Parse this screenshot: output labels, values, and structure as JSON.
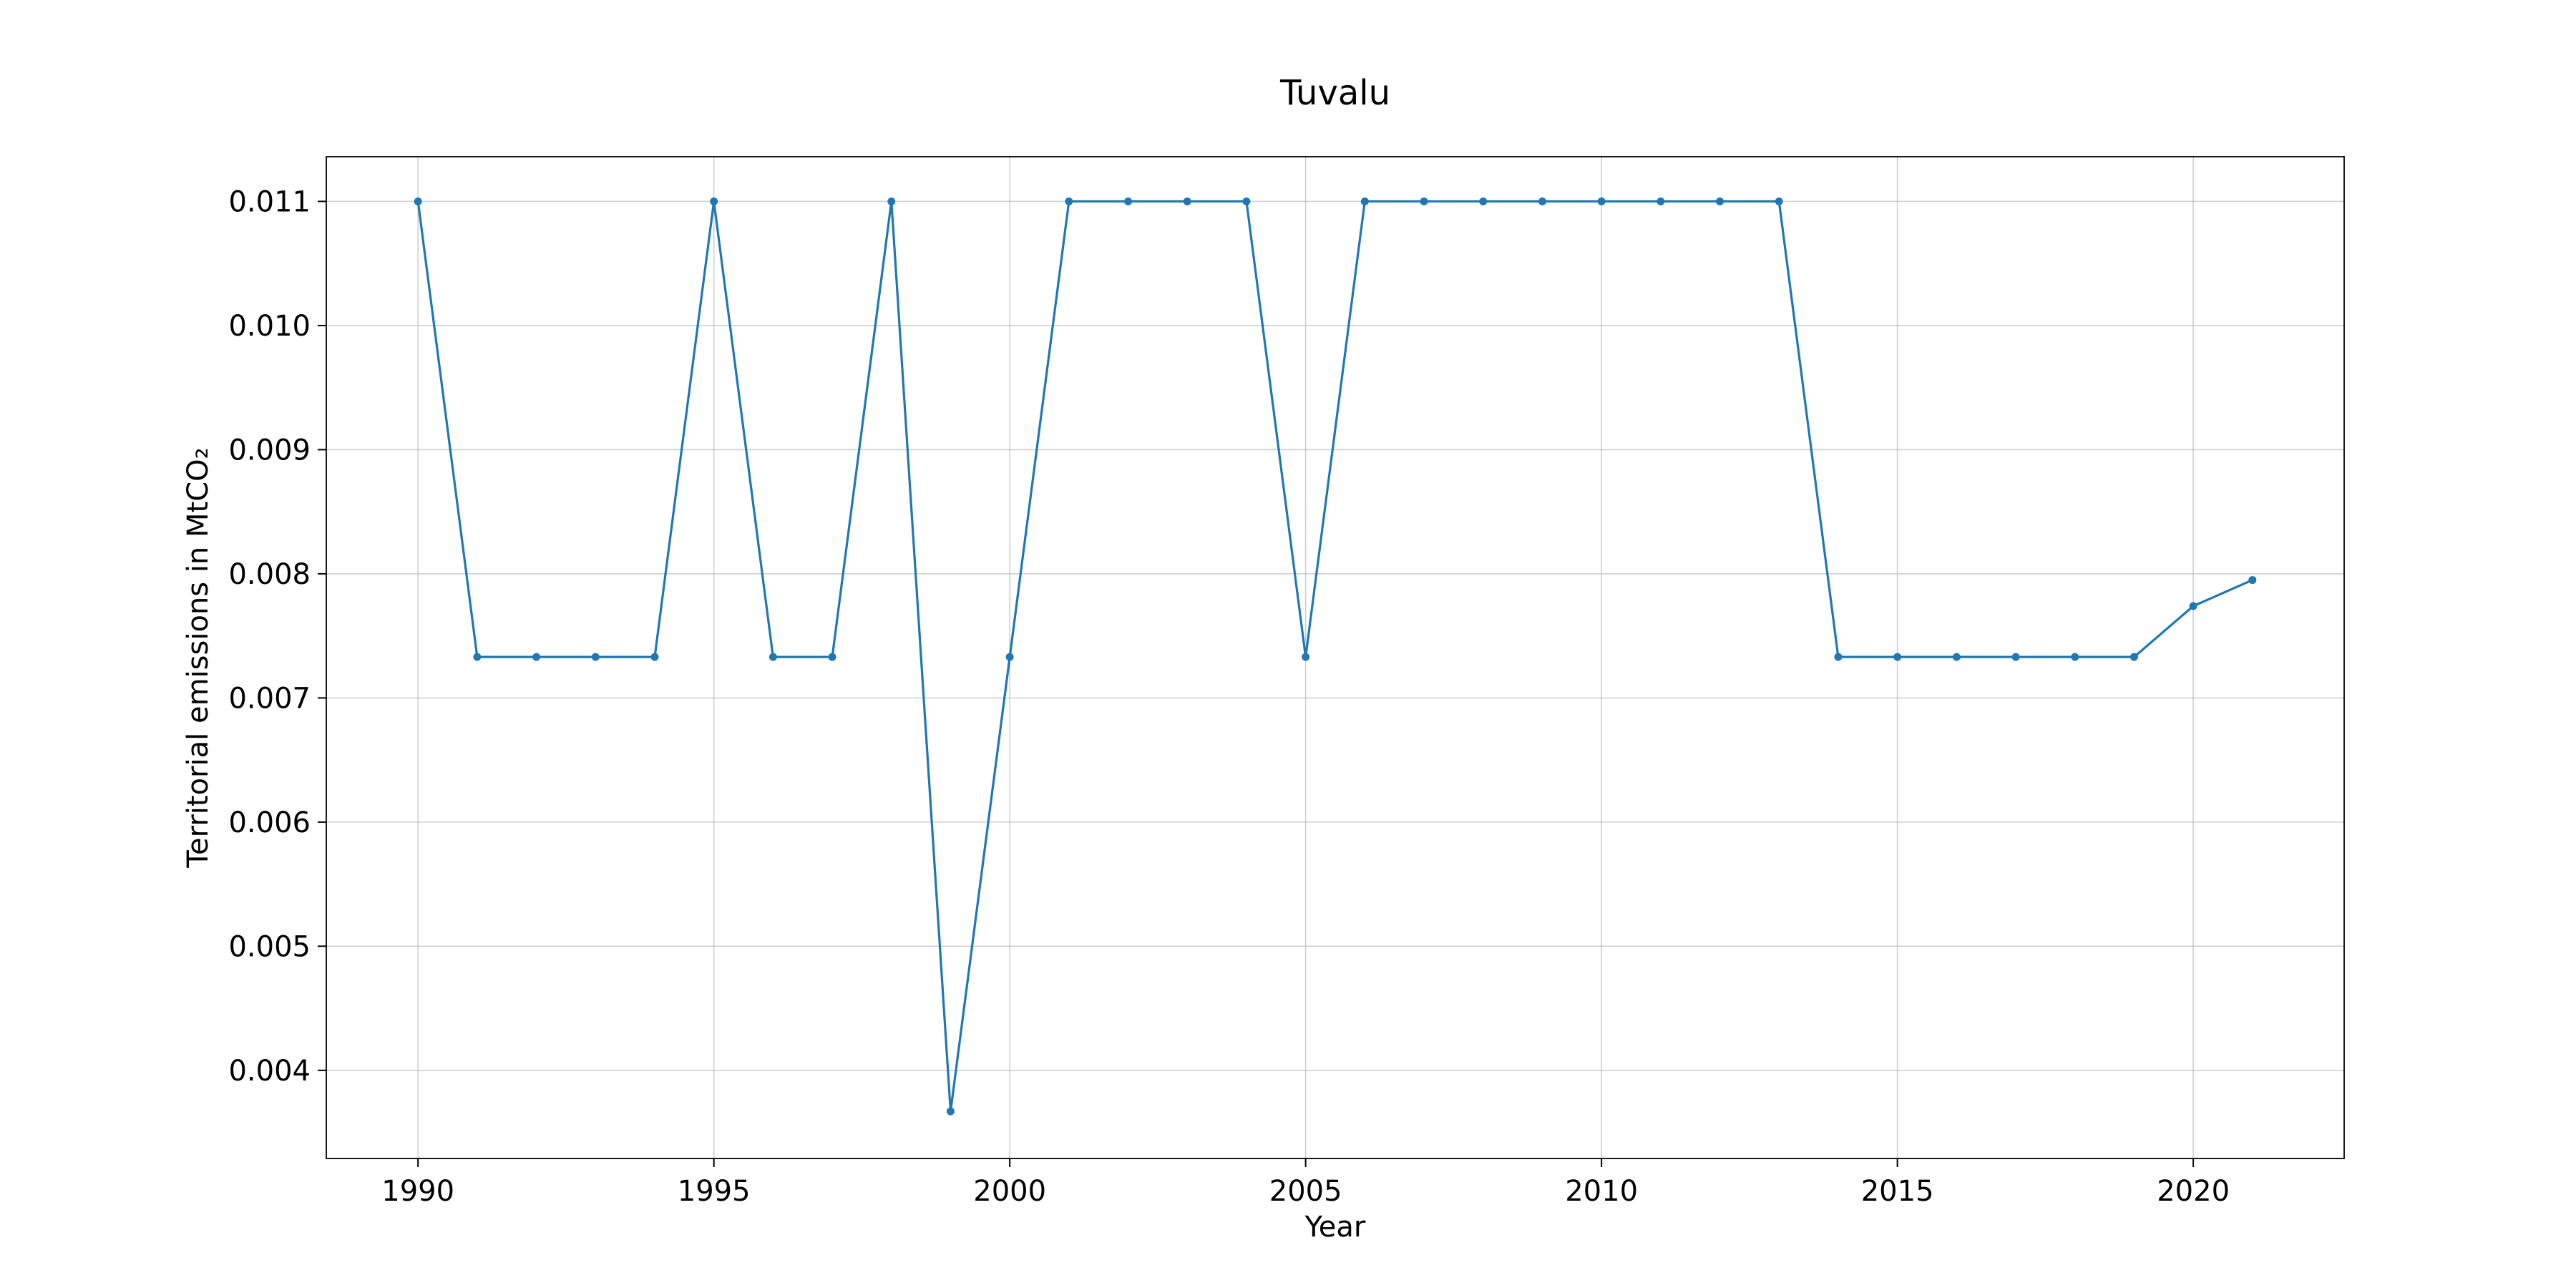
{
  "chart_data": {
    "type": "line",
    "title": "Tuvalu",
    "xlabel": "Year",
    "ylabel": "Territorial emissions in MtCO₂",
    "xlim": [
      1988.45,
      2022.55
    ],
    "ylim": [
      0.00329,
      0.01136
    ],
    "x_ticks": [
      1990,
      1995,
      2000,
      2005,
      2010,
      2015,
      2020
    ],
    "y_ticks": [
      0.004,
      0.005,
      0.006,
      0.007,
      0.008,
      0.009,
      0.01,
      0.011
    ],
    "y_tick_labels": [
      "0.004",
      "0.005",
      "0.006",
      "0.007",
      "0.008",
      "0.009",
      "0.010",
      "0.011"
    ],
    "grid": true,
    "series": [
      {
        "color": "#1f77b4",
        "marker": "circle",
        "x": [
          1990,
          1991,
          1992,
          1993,
          1994,
          1995,
          1996,
          1997,
          1998,
          1999,
          2000,
          2001,
          2002,
          2003,
          2004,
          2005,
          2006,
          2007,
          2008,
          2009,
          2010,
          2011,
          2012,
          2013,
          2014,
          2015,
          2016,
          2017,
          2018,
          2019,
          2020,
          2021
        ],
        "y": [
          0.011,
          0.00733,
          0.00733,
          0.00733,
          0.00733,
          0.011,
          0.00733,
          0.00733,
          0.011,
          0.00367,
          0.00733,
          0.011,
          0.011,
          0.011,
          0.011,
          0.00733,
          0.011,
          0.011,
          0.011,
          0.011,
          0.011,
          0.011,
          0.011,
          0.011,
          0.00733,
          0.00733,
          0.00733,
          0.00733,
          0.00733,
          0.00733,
          0.00774,
          0.00795
        ]
      }
    ]
  }
}
